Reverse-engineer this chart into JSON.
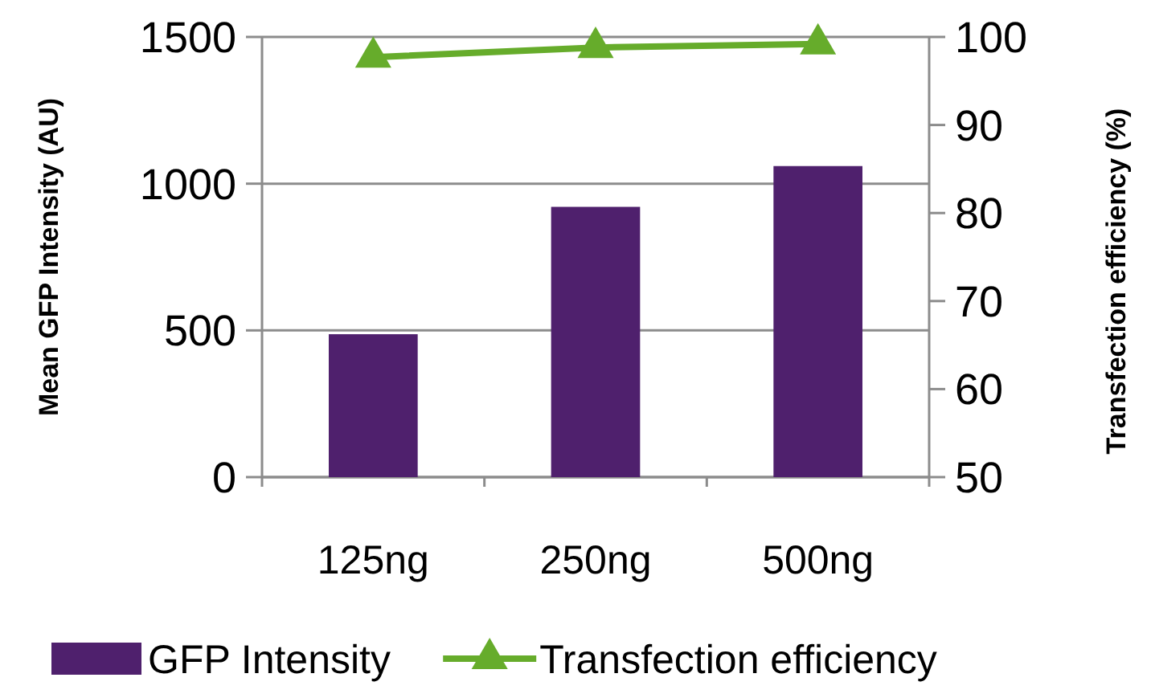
{
  "chart_data": {
    "type": "bar",
    "ylabel": "Mean GFP Intensity (AU)",
    "y2label": "Transfection efficiency (%)",
    "categories": [
      "125ng",
      "250ng",
      "500ng"
    ],
    "series": [
      {
        "name": "GFP Intensity",
        "color": "#4f206d",
        "values": [
          487,
          921,
          1060
        ]
      },
      {
        "name": "Transfection efficiency",
        "type": "line",
        "axis": "y2",
        "color": "#66ac2b",
        "values": [
          97.7,
          98.8,
          99.2
        ],
        "marker": "triangle"
      }
    ],
    "ylim": [
      0,
      1500
    ],
    "yticks": [
      0,
      500,
      1000,
      1500
    ],
    "y2lim": [
      50,
      100
    ],
    "y2ticks": [
      50,
      60,
      70,
      80,
      90,
      100
    ],
    "grid": "y",
    "legend": "bottom"
  }
}
